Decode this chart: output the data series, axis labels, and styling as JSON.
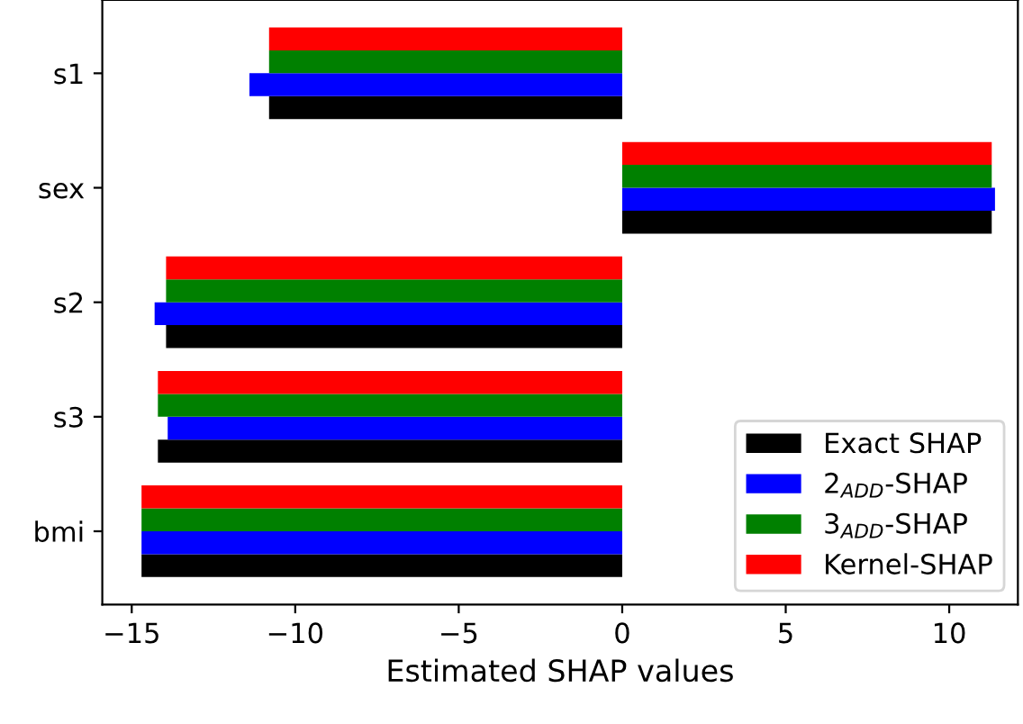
{
  "chart_data": {
    "type": "bar",
    "orientation": "horizontal",
    "xlabel": "Estimated SHAP values",
    "categories": [
      "s1",
      "sex",
      "s2",
      "s3",
      "bmi"
    ],
    "series": [
      {
        "name": "Exact SHAP",
        "color": "#000000",
        "values": [
          -10.8,
          11.3,
          -13.95,
          -14.2,
          -14.7
        ]
      },
      {
        "name": "2$_{ADD}$-SHAP",
        "color": "#0000ff",
        "values": [
          -11.4,
          11.4,
          -14.3,
          -13.9,
          -14.7
        ]
      },
      {
        "name": "3$_{ADD}$-SHAP",
        "color": "#008000",
        "values": [
          -10.8,
          11.3,
          -13.95,
          -14.2,
          -14.7
        ]
      },
      {
        "name": "Kernel-SHAP",
        "color": "#ff0000",
        "values": [
          -10.8,
          11.3,
          -13.95,
          -14.2,
          -14.7
        ]
      }
    ],
    "xlim": [
      -15.9,
      12.1
    ],
    "xticks": [
      {
        "value": -15,
        "label": "−15"
      },
      {
        "value": -10,
        "label": "−10"
      },
      {
        "value": -5,
        "label": "−5"
      },
      0,
      5,
      10
    ],
    "legend": "bottom right",
    "grid": false
  }
}
